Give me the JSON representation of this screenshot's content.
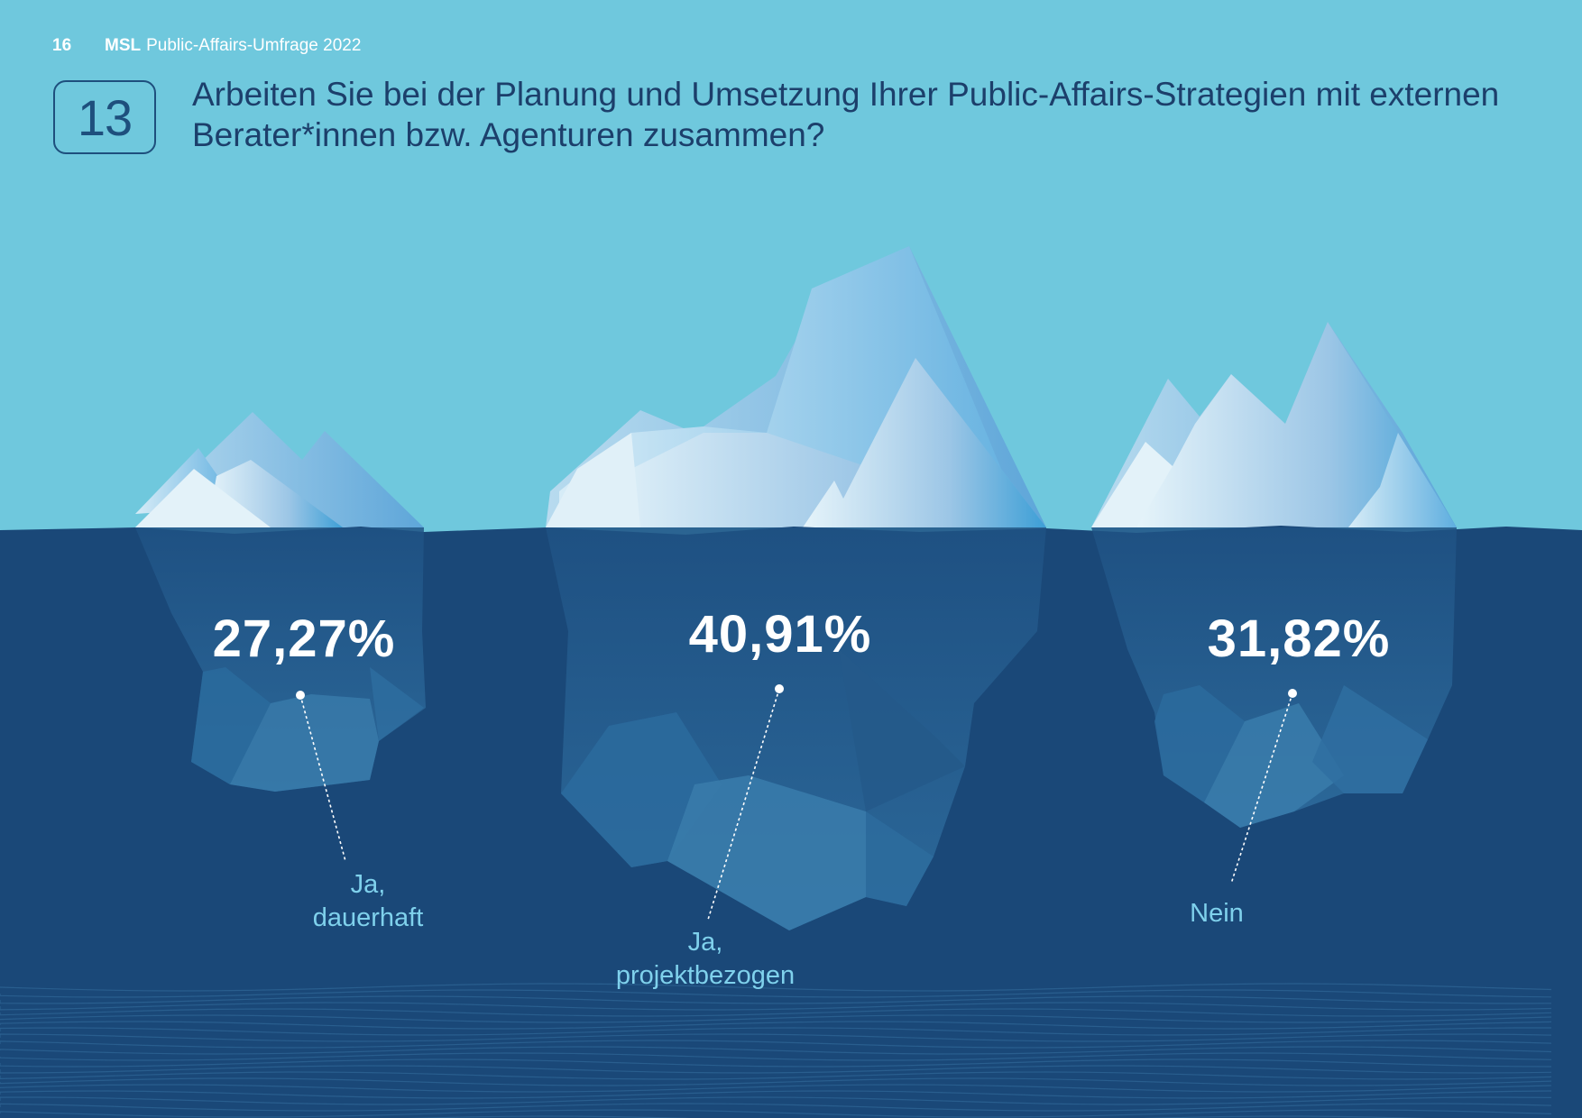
{
  "header": {
    "page_number": "16",
    "brand": "MSL",
    "publication": "Public-Affairs-Umfrage 2022"
  },
  "question": {
    "number": "13",
    "text": "Arbeiten Sie bei der Planung und Umsetzung Ihrer Public-Affairs-Strategien mit externen Berater*innen bzw. Agenturen zusammen?"
  },
  "colors": {
    "sky": "#6fc8dd",
    "water": "#1a4878",
    "label": "#7fd1ec",
    "title": "#1c3f6b"
  },
  "chart_data": {
    "type": "pictorial",
    "unit": "%",
    "categories": [
      "Ja, dauerhaft",
      "Ja, projektbezogen",
      "Nein"
    ],
    "values": [
      27.27,
      40.91,
      31.82
    ],
    "display_values": [
      "27,27%",
      "40,91%",
      "31,82%"
    ],
    "label_lines": [
      [
        "Ja,",
        "dauerhaft"
      ],
      [
        "Ja,",
        "projektbezogen"
      ],
      [
        "Nein"
      ]
    ]
  }
}
